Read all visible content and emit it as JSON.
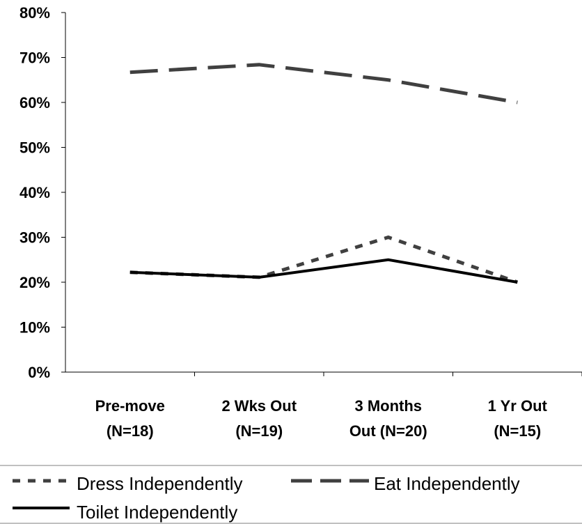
{
  "chart_data": {
    "type": "line",
    "categories": [
      [
        "Pre-move",
        "(N=18)"
      ],
      [
        "2 Wks Out",
        "(N=19)"
      ],
      [
        "3 Months",
        "Out (N=20)"
      ],
      [
        "1 Yr Out",
        "(N=15)"
      ]
    ],
    "y_ticks": [
      "0%",
      "10%",
      "20%",
      "30%",
      "40%",
      "50%",
      "60%",
      "70%",
      "80%"
    ],
    "ylim": [
      0,
      80
    ],
    "y_unit": "%",
    "grid": false,
    "legend_position": "bottom",
    "series": [
      {
        "name": "Dress Independently",
        "values": [
          22.2,
          21.1,
          30.0,
          20.0
        ],
        "style": "dotted",
        "color": "#404040"
      },
      {
        "name": "Eat Independently",
        "values": [
          66.7,
          68.4,
          65.0,
          60.0
        ],
        "style": "long-dash",
        "color": "#404040"
      },
      {
        "name": "Toilet Independently",
        "values": [
          22.2,
          21.1,
          25.0,
          20.0
        ],
        "style": "solid",
        "color": "#000000"
      }
    ]
  }
}
